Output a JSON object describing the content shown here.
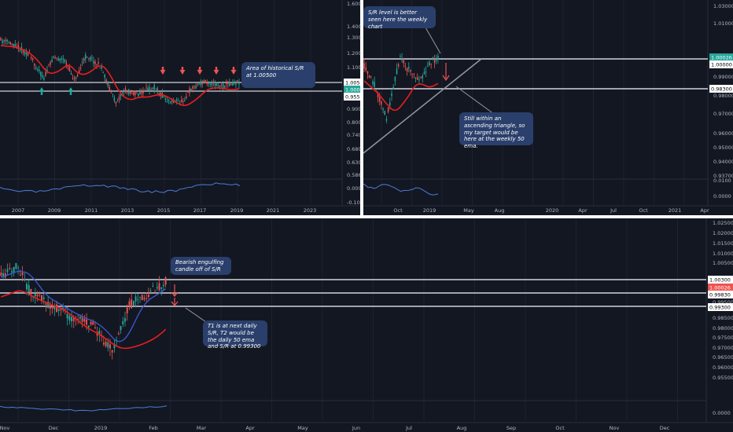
{
  "colors": {
    "bg": "#131722",
    "grid": "#1e2230",
    "axis_text": "#b2b5be",
    "up": "#26a69a",
    "down": "#ef5350",
    "ema": "#e91e1e",
    "sma": "#3b5bd6",
    "osc": "#4e7bd8",
    "line": "#d1d4dc",
    "note_bg": "#2a3f6b"
  },
  "panels": {
    "weekly": {
      "y_ticks": [
        "1.60000",
        "1.40000",
        "1.30000",
        "1.20000",
        "1.10000",
        "1.00000",
        "0.90000",
        "0.80000",
        "0.74000",
        "0.68000",
        "0.63000",
        "0.58600"
      ],
      "x_ticks": [
        "2007",
        "2009",
        "2011",
        "2013",
        "2015",
        "2017",
        "2019",
        "2021",
        "2023"
      ],
      "osc_ticks": [
        "0.0000",
        "-0.1000"
      ],
      "levels": [
        {
          "label": "1.00500",
          "value": 1.005
        },
        {
          "label": "0.95500",
          "value": 0.955
        }
      ],
      "price_label": "1.00026",
      "annotation": "Area of historical S/R at 1.00500"
    },
    "daily_wide": {
      "y_ticks": [
        "1.03000",
        "1.01000",
        "0.99000",
        "0.98000",
        "0.97000",
        "0.96000",
        "0.95000",
        "0.94000",
        "0.93700"
      ],
      "x_ticks": [
        "Oct",
        "2019",
        "May",
        "Aug",
        "2020",
        "Apr",
        "Jul",
        "Oct",
        "2021",
        "Apr"
      ],
      "osc_ticks": [
        "0.0100",
        "0.0000"
      ],
      "levels": [
        {
          "label": "1.00000",
          "value": 1.0
        },
        {
          "label": "0.98300",
          "value": 0.983
        }
      ],
      "price_label": "1.00026",
      "annotation_top": "S/R level is better seen here the weekly chart",
      "annotation_bottom": "Still within an ascending triangle, so my target would be here at the weekly 50 ema."
    },
    "daily": {
      "y_ticks": [
        "1.02500",
        "1.02000",
        "1.01500",
        "1.01000",
        "1.00500",
        "0.99500",
        "0.98500",
        "0.98000",
        "0.97500",
        "0.97000",
        "0.96500",
        "0.96000",
        "0.95500"
      ],
      "x_ticks": [
        "Nov",
        "Dec",
        "2019",
        "Feb",
        "Mar",
        "Apr",
        "May",
        "Jun",
        "Jul",
        "Aug",
        "Sep",
        "Oct",
        "Nov",
        "Dec"
      ],
      "osc_ticks": [
        "0.0000"
      ],
      "levels": [
        {
          "label": "1.00300",
          "value": 1.003
        },
        {
          "label": "0.99830",
          "value": 0.9983
        },
        {
          "label": "0.99300",
          "value": 0.993
        }
      ],
      "price_label": "1.00026",
      "annotation_top": "Bearish engulfing candle off of S/R",
      "annotation_bottom": "T1 is at next daily S/R, T2 would be the daily 50 ema and S/R at 0.99300"
    }
  },
  "chart_data": [
    {
      "type": "candlestick",
      "title": "",
      "timeframe": "weekly",
      "x_range": [
        "2006",
        "2023"
      ],
      "ema_color": "red",
      "osc": true,
      "levels": [
        1.005,
        0.955
      ]
    },
    {
      "type": "candlestick",
      "title": "",
      "timeframe": "weekly",
      "x_range": [
        "2018-06",
        "2021-04"
      ],
      "levels": [
        1.0,
        0.983
      ],
      "pattern": "ascending triangle"
    },
    {
      "type": "candlestick",
      "title": "",
      "timeframe": "daily",
      "x_range": [
        "2018-10",
        "2019-12"
      ],
      "levels": [
        1.003,
        0.9983,
        0.993
      ]
    }
  ]
}
